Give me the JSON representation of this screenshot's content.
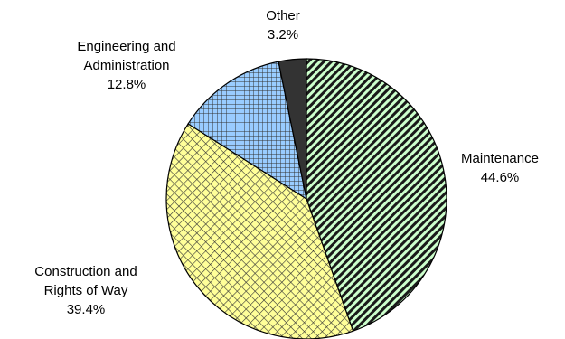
{
  "chart_data": {
    "type": "pie",
    "start_angle_deg": 0,
    "direction": "clockwise",
    "slices": [
      {
        "label_lines": [
          "Maintenance"
        ],
        "value": 44.6,
        "value_label": "44.6%",
        "color": "#ccffcc",
        "pattern": "diagonal-stripes"
      },
      {
        "label_lines": [
          "Construction and",
          "Rights of Way"
        ],
        "value": 39.4,
        "value_label": "39.4%",
        "color": "#ffff99",
        "pattern": "diamond-lattice"
      },
      {
        "label_lines": [
          "Engineering and",
          "Administration"
        ],
        "value": 12.8,
        "value_label": "12.8%",
        "color": "#99ccff",
        "pattern": "grid"
      },
      {
        "label_lines": [
          "Other"
        ],
        "value": 3.2,
        "value_label": "3.2%",
        "color": "#333333",
        "pattern": "solid"
      }
    ],
    "legend": false
  }
}
